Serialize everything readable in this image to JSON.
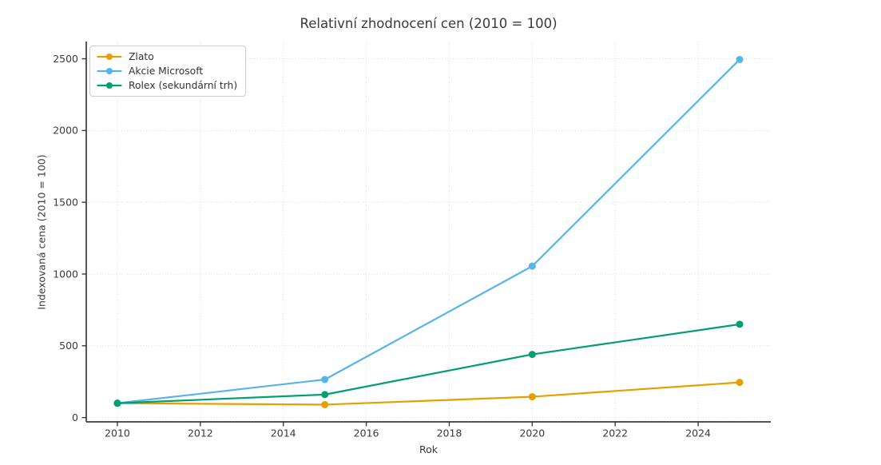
{
  "title": "Relativní zhodnocení cen (2010 = 100)",
  "chart_data": {
    "type": "line",
    "x": [
      2010,
      2015,
      2020,
      2025
    ],
    "series": [
      {
        "name": "Zlato",
        "color": "#E69F00",
        "values": [
          100,
          90,
          145,
          245
        ]
      },
      {
        "name": "Akcie Microsoft",
        "color": "#56B4E9",
        "values": [
          100,
          265,
          1055,
          2495
        ]
      },
      {
        "name": "Rolex (sekundární trh)",
        "color": "#009E73",
        "values": [
          100,
          160,
          440,
          650
        ]
      }
    ],
    "title": "Relativní zhodnocení cen (2010 = 100)",
    "xlabel": "Rok",
    "ylabel": "Indexovaná cena (2010 = 100)",
    "x_ticks": [
      2010,
      2012,
      2014,
      2016,
      2018,
      2020,
      2022,
      2024
    ],
    "y_ticks": [
      0,
      500,
      1000,
      1500,
      2000,
      2500
    ],
    "xlim": [
      2009.25,
      2025.75
    ],
    "ylim": [
      -30,
      2620
    ],
    "grid": true,
    "grid_style": "dotted",
    "legend_position": "upper-left",
    "colors": {
      "text": "#3a3a3a",
      "spine": "#3a3a3a",
      "grid": "#cfcfcf",
      "background": "#ffffff"
    }
  }
}
